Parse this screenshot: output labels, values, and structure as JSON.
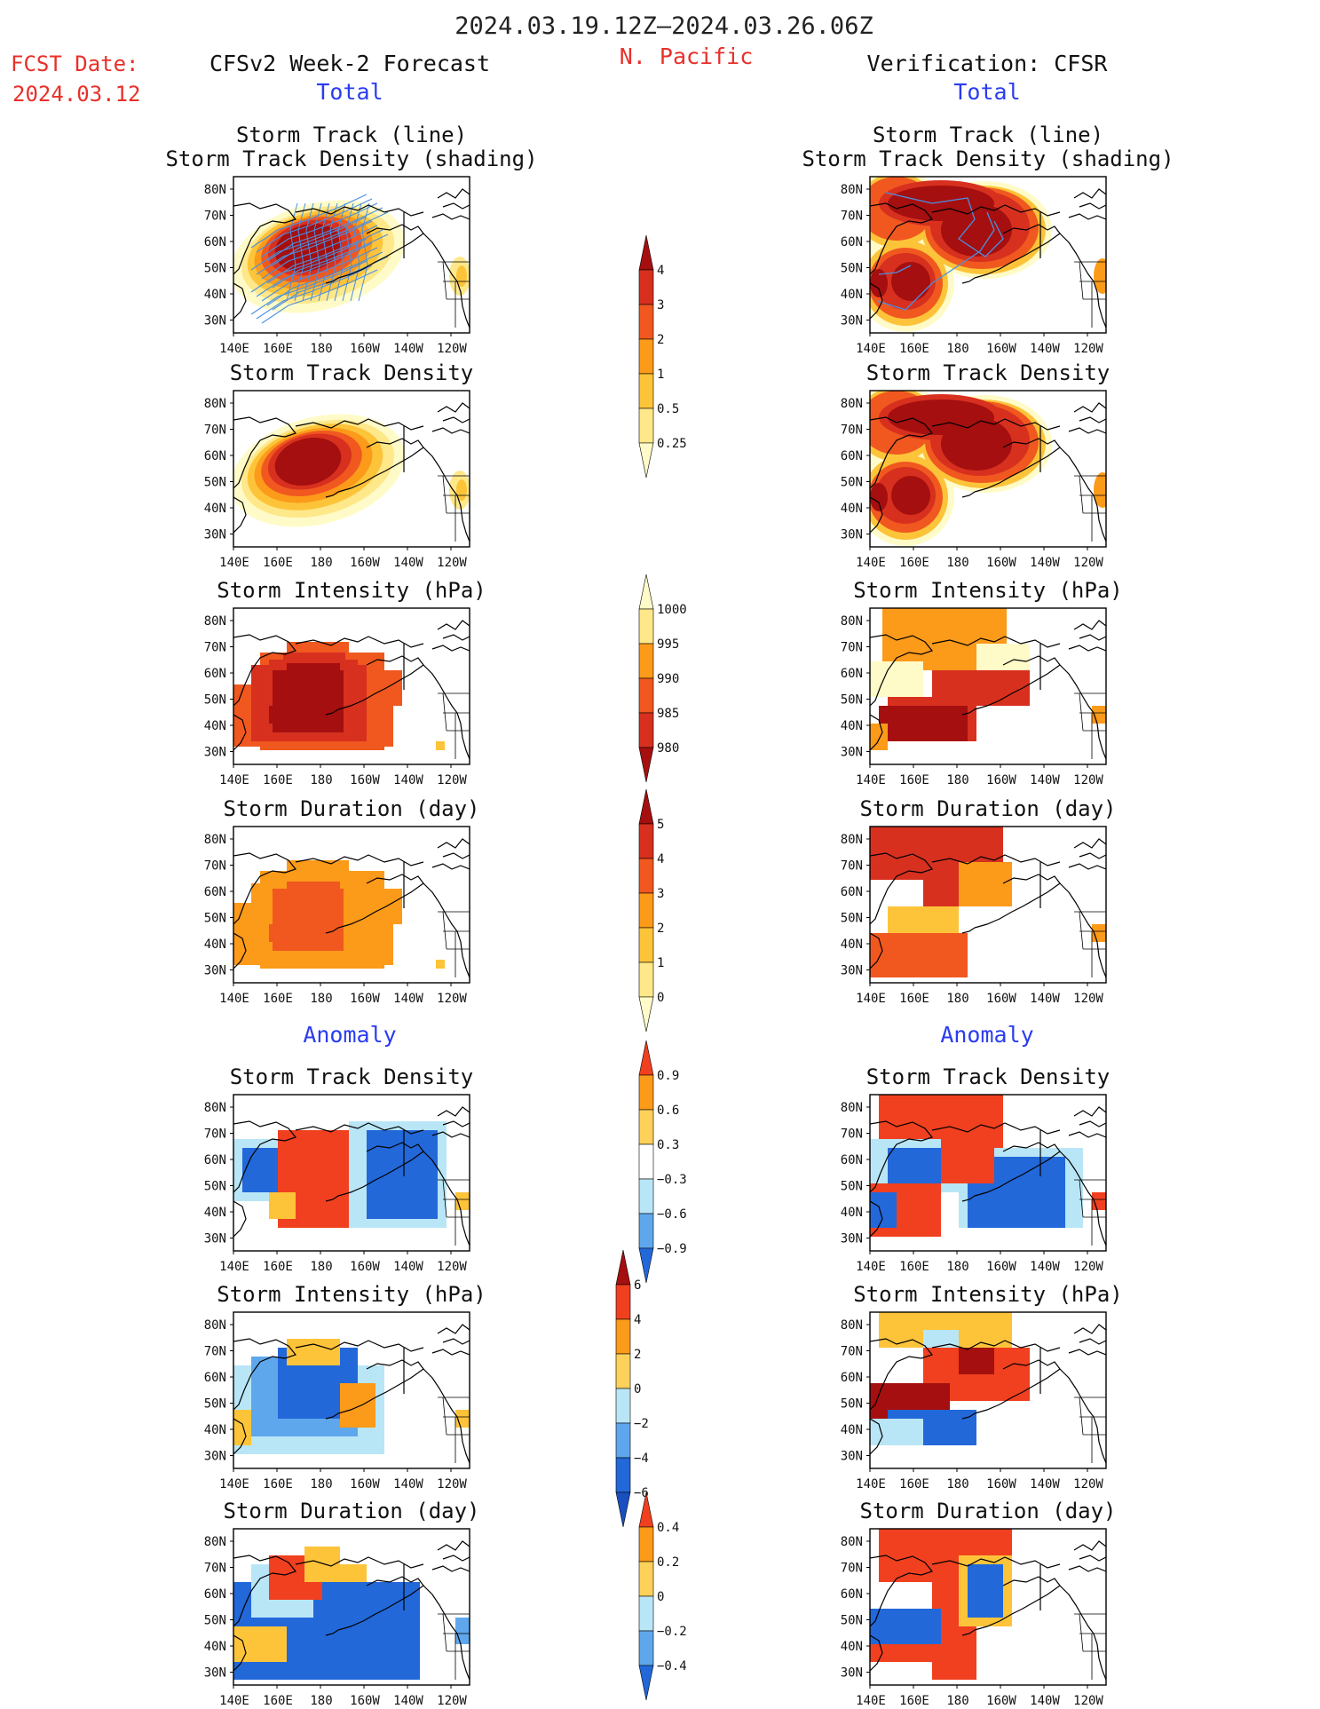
{
  "header": {
    "period": "2024.03.19.12Z–2024.03.26.06Z",
    "region": "N. Pacific",
    "fcst_label": "FCST Date:",
    "fcst_date": "2024.03.12",
    "left_title": "CFSv2 Week-2 Forecast",
    "right_title": "Verification: CFSR",
    "total_label": "Total",
    "anomaly_label": "Anomaly"
  },
  "axes": {
    "lat_labels": [
      "80N",
      "70N",
      "60N",
      "50N",
      "40N",
      "30N"
    ],
    "lon_labels": [
      "140E",
      "160E",
      "180",
      "160W",
      "140W",
      "120W"
    ]
  },
  "panel_titles": {
    "track_line": "Storm Track (line)",
    "track_density_shading": "Storm Track Density (shading)",
    "track_density": "Storm Track Density",
    "intensity": "Storm Intensity (hPa)",
    "duration": "Storm Duration (day)"
  },
  "colorbars": {
    "density": {
      "labels": [
        "4",
        "3",
        "2",
        "1",
        "0.5",
        "0.25"
      ],
      "colors": [
        "#a50f0f",
        "#d7301f",
        "#f0581f",
        "#fc9a1a",
        "#fdc43a",
        "#fee88a",
        "#fffbc8"
      ]
    },
    "intensity": {
      "labels": [
        "1000",
        "995",
        "990",
        "985",
        "980"
      ],
      "colors": [
        "#fffbc8",
        "#fee88a",
        "#fc9a1a",
        "#f0581f",
        "#d7301f",
        "#a50f0f"
      ]
    },
    "duration": {
      "labels": [
        "5",
        "4",
        "3",
        "2",
        "1",
        "0"
      ],
      "colors": [
        "#a50f0f",
        "#d7301f",
        "#f0581f",
        "#fc9a1a",
        "#fdc43a",
        "#fee88a",
        "#fffbc8"
      ]
    },
    "anom_density": {
      "labels": [
        "0.9",
        "0.6",
        "0.3",
        "−0.3",
        "−0.6",
        "−0.9"
      ],
      "colors": [
        "#f0401f",
        "#fc9a1a",
        "#fdd15a",
        "#ffffff",
        "#b9e6f7",
        "#5fa7ec",
        "#2268d9"
      ]
    },
    "anom_intensity": {
      "labels": [
        "6",
        "4",
        "2",
        "0",
        "−2",
        "−4",
        "−6"
      ],
      "colors": [
        "#a50f0f",
        "#f0401f",
        "#fc9a1a",
        "#fdd15a",
        "#b9e6f7",
        "#5fa7ec",
        "#2268d9",
        "#1a4fc0"
      ]
    },
    "anom_duration": {
      "labels": [
        "0.4",
        "0.2",
        "0",
        "−0.2",
        "−0.4"
      ],
      "colors": [
        "#f0401f",
        "#fc9a1a",
        "#fdd15a",
        "#b9e6f7",
        "#5fa7ec",
        "#2268d9"
      ]
    }
  },
  "fills": {
    "dark_red": "#a50f0f",
    "red": "#d7301f",
    "red_orange": "#f0581f",
    "orange": "#fc9a1a",
    "gold": "#fdc43a",
    "yellow": "#fee88a",
    "pale": "#fffbc8",
    "anom_red": "#f0401f",
    "anom_blue": "#2268d9",
    "light_blue": "#b9e6f7",
    "mid_blue": "#5fa7ec",
    "track_line": "#4a8fe0",
    "title_red": "#e8302a",
    "label_blue": "#2a3cf0"
  }
}
